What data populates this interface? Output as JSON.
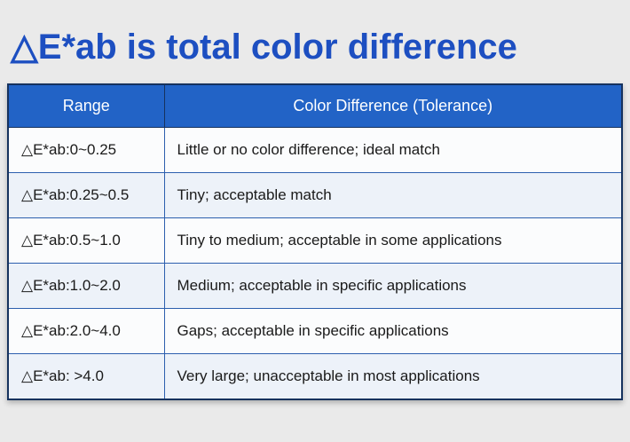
{
  "title": "△E*ab is total color difference",
  "table": {
    "headers": [
      "Range",
      "Color Difference (Tolerance)"
    ],
    "rows": [
      {
        "range": "△E*ab:0~0.25",
        "desc": "Little or no color difference; ideal match"
      },
      {
        "range": "△E*ab:0.25~0.5",
        "desc": "Tiny; acceptable match"
      },
      {
        "range": "△E*ab:0.5~1.0",
        "desc": "Tiny to medium; acceptable in some applications"
      },
      {
        "range": "△E*ab:1.0~2.0",
        "desc": "Medium; acceptable in specific applications"
      },
      {
        "range": "△E*ab:2.0~4.0",
        "desc": "Gaps; acceptable in specific applications"
      },
      {
        "range": "△E*ab: >4.0",
        "desc": "Very large; unacceptable in most applications"
      }
    ]
  },
  "colors": {
    "title_color": "#1d4fc1",
    "header_bg": "#2263c6",
    "header_text": "#ffffff",
    "outer_border": "#16325e",
    "cell_border": "#2c5fae",
    "row_bg": "#fbfcfd",
    "row_alt": "#edf2f9",
    "page_bg": "#eaeaea"
  }
}
